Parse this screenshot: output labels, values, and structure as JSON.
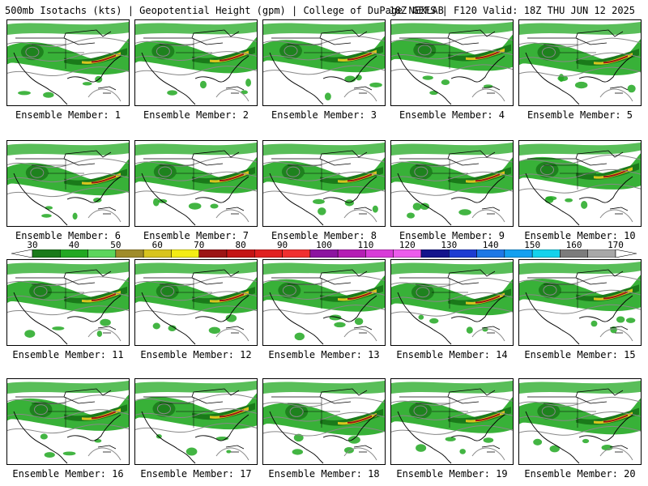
{
  "header": {
    "left": "500mb Isotachs (kts) | Geopotential Height (gpm) | College of DuPage NEXLAB",
    "right": "18Z GEFS | F120 Valid: 18Z THU JUN 12 2025"
  },
  "panels": [
    {
      "caption": "Ensemble Member: 1"
    },
    {
      "caption": "Ensemble Member: 2"
    },
    {
      "caption": "Ensemble Member: 3"
    },
    {
      "caption": "Ensemble Member: 4"
    },
    {
      "caption": "Ensemble Member: 5"
    },
    {
      "caption": "Ensemble Member: 6"
    },
    {
      "caption": "Ensemble Member: 7"
    },
    {
      "caption": "Ensemble Member: 8"
    },
    {
      "caption": "Ensemble Member: 9"
    },
    {
      "caption": "Ensemble Member: 10"
    },
    {
      "caption": "Ensemble Member: 11"
    },
    {
      "caption": "Ensemble Member: 12"
    },
    {
      "caption": "Ensemble Member: 13"
    },
    {
      "caption": "Ensemble Member: 14"
    },
    {
      "caption": "Ensemble Member: 15"
    },
    {
      "caption": "Ensemble Member: 16"
    },
    {
      "caption": "Ensemble Member: 17"
    },
    {
      "caption": "Ensemble Member: 18"
    },
    {
      "caption": "Ensemble Member: 19"
    },
    {
      "caption": "Ensemble Member: 20"
    }
  ],
  "colorbar": {
    "labels": [
      "30",
      "40",
      "50",
      "60",
      "70",
      "80",
      "90",
      "100",
      "110",
      "120",
      "130",
      "140",
      "150",
      "160",
      "170"
    ],
    "colors": [
      "#1a7a1a",
      "#22a822",
      "#5cd65c",
      "#a08c2a",
      "#d8c41e",
      "#f4ec14",
      "#9c1414",
      "#c41414",
      "#e02020",
      "#f03030",
      "#8c14a0",
      "#b41eb4",
      "#d83cd8",
      "#ec5cec",
      "#14148c",
      "#1e3cd2",
      "#1e78e6",
      "#14a0f0",
      "#14d2ec",
      "#7c7c7c",
      "#a8a8a8"
    ],
    "bins": [
      30,
      35,
      40,
      45,
      50,
      55,
      60,
      65,
      70,
      75,
      80,
      85,
      90,
      95,
      100,
      105,
      110,
      115,
      120,
      125,
      130,
      135,
      140,
      145,
      150,
      155,
      160,
      165,
      170
    ]
  },
  "map_colors": {
    "weak_wind": "#22a822",
    "strong_wind": "#1a7a1a",
    "jet_core": "#d8c41e",
    "jet_max": "#9c1414",
    "height_contour": "#888888",
    "coastline": "#000000"
  }
}
